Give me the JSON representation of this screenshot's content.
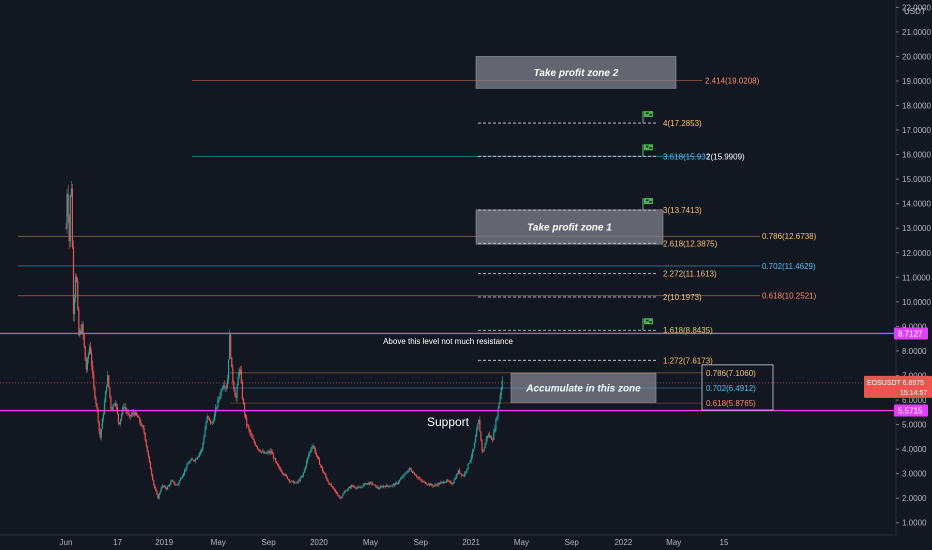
{
  "chart_data": {
    "type": "candlestick",
    "symbol": "EOSUSDT",
    "price_axis": {
      "unit": "USDT",
      "ticks": [
        "1.0000",
        "2.0000",
        "3.0000",
        "4.0000",
        "5.0000",
        "6.0000",
        "7.0000",
        "8.0000",
        "9.0000",
        "10.0000",
        "11.0000",
        "12.0000",
        "13.0000",
        "14.0000",
        "15.0000",
        "16.0000",
        "17.0000",
        "18.0000",
        "19.0000",
        "20.0000",
        "21.0000",
        "22.0000"
      ],
      "range": [
        0.5,
        22.3
      ]
    },
    "time_axis": {
      "ticks": [
        {
          "label": "Jun",
          "t": 0.0
        },
        {
          "label": "17",
          "t": 4.1
        },
        {
          "label": "2019",
          "t": 7.8
        },
        {
          "label": "May",
          "t": 12.1
        },
        {
          "label": "Sep",
          "t": 16.1
        },
        {
          "label": "2020",
          "t": 20.1
        },
        {
          "label": "May",
          "t": 24.2
        },
        {
          "label": "Sep",
          "t": 28.2
        },
        {
          "label": "2021",
          "t": 32.2
        },
        {
          "label": "May",
          "t": 36.2
        },
        {
          "label": "Sep",
          "t": 40.2
        },
        {
          "label": "2022",
          "t": 44.3
        },
        {
          "label": "May",
          "t": 48.3
        },
        {
          "label": "15",
          "t": 52.3
        }
      ]
    },
    "price_path": [
      [
        0.0,
        13.0
      ],
      [
        0.1,
        14.8
      ],
      [
        0.25,
        12.4
      ],
      [
        0.4,
        15.5
      ],
      [
        0.6,
        9.5
      ],
      [
        0.8,
        11.5
      ],
      [
        1.0,
        8.6
      ],
      [
        1.3,
        9.0
      ],
      [
        1.6,
        7.2
      ],
      [
        1.9,
        8.3
      ],
      [
        2.2,
        6.5
      ],
      [
        2.5,
        5.5
      ],
      [
        2.7,
        4.4
      ],
      [
        3.0,
        5.6
      ],
      [
        3.3,
        7.0
      ],
      [
        3.6,
        5.6
      ],
      [
        3.9,
        6.0
      ],
      [
        4.2,
        5.0
      ],
      [
        4.6,
        5.8
      ],
      [
        5.0,
        5.3
      ],
      [
        5.4,
        5.5
      ],
      [
        5.8,
        5.2
      ],
      [
        6.2,
        4.7
      ],
      [
        6.6,
        3.5
      ],
      [
        7.0,
        2.5
      ],
      [
        7.3,
        2.0
      ],
      [
        7.6,
        2.5
      ],
      [
        8.0,
        2.4
      ],
      [
        8.4,
        2.7
      ],
      [
        8.8,
        2.5
      ],
      [
        9.3,
        3.0
      ],
      [
        9.8,
        3.5
      ],
      [
        10.3,
        3.6
      ],
      [
        10.8,
        4.0
      ],
      [
        11.2,
        5.3
      ],
      [
        11.6,
        5.0
      ],
      [
        12.1,
        6.0
      ],
      [
        12.5,
        6.7
      ],
      [
        12.8,
        6.5
      ],
      [
        13.0,
        8.6
      ],
      [
        13.2,
        7.0
      ],
      [
        13.5,
        6.0
      ],
      [
        13.8,
        7.5
      ],
      [
        14.0,
        6.2
      ],
      [
        14.3,
        5.1
      ],
      [
        14.8,
        4.4
      ],
      [
        15.3,
        4.0
      ],
      [
        15.8,
        3.8
      ],
      [
        16.3,
        3.9
      ],
      [
        16.8,
        3.3
      ],
      [
        17.3,
        3.0
      ],
      [
        17.8,
        2.7
      ],
      [
        18.3,
        2.6
      ],
      [
        18.8,
        2.9
      ],
      [
        19.3,
        3.8
      ],
      [
        19.6,
        4.2
      ],
      [
        20.0,
        3.6
      ],
      [
        20.5,
        3.0
      ],
      [
        20.9,
        2.6
      ],
      [
        21.2,
        2.4
      ],
      [
        21.5,
        2.2
      ],
      [
        21.8,
        2.0
      ],
      [
        22.2,
        2.3
      ],
      [
        22.7,
        2.5
      ],
      [
        23.3,
        2.4
      ],
      [
        23.8,
        2.6
      ],
      [
        24.3,
        2.6
      ],
      [
        24.8,
        2.4
      ],
      [
        25.3,
        2.5
      ],
      [
        25.8,
        2.5
      ],
      [
        26.3,
        2.6
      ],
      [
        26.8,
        2.9
      ],
      [
        27.3,
        3.2
      ],
      [
        27.7,
        3.0
      ],
      [
        28.2,
        2.7
      ],
      [
        28.7,
        2.6
      ],
      [
        29.2,
        2.5
      ],
      [
        29.7,
        2.6
      ],
      [
        30.2,
        2.7
      ],
      [
        30.7,
        2.6
      ],
      [
        31.2,
        3.1
      ],
      [
        31.6,
        2.9
      ],
      [
        32.0,
        3.4
      ],
      [
        32.4,
        4.0
      ],
      [
        32.8,
        5.2
      ],
      [
        33.1,
        3.8
      ],
      [
        33.5,
        4.6
      ],
      [
        33.9,
        4.4
      ],
      [
        34.3,
        5.5
      ],
      [
        34.7,
        6.9
      ]
    ],
    "horizontal_lines": [
      {
        "label": "8.7127",
        "value": 8.7127,
        "color": "#e040fb",
        "style": "solid",
        "span": "full"
      },
      {
        "label": "5.5715",
        "value": 5.5715,
        "color": "#e040fb",
        "style": "solid",
        "span": "full"
      }
    ],
    "fib_extension": [
      {
        "ratio": "1.272",
        "price": "7.6173",
        "value": 7.6173
      },
      {
        "ratio": "1.618",
        "price": "8.8435",
        "value": 8.8435,
        "flag": true
      },
      {
        "ratio": "2",
        "price": "10.1973",
        "value": 10.1973
      },
      {
        "ratio": "2.272",
        "price": "11.1613",
        "value": 11.1613
      },
      {
        "ratio": "2.618",
        "price": "12.3875",
        "value": 12.3875
      },
      {
        "ratio": "3",
        "price": "13.7413",
        "value": 13.7413,
        "flag": true
      },
      {
        "ratio": "3.618",
        "price": "15.9315",
        "value": 15.9315,
        "flag": true,
        "label": "3.618(15.931"
      },
      {
        "ratio": "4",
        "price": "17.2853",
        "value": 17.2853,
        "flag": true
      }
    ],
    "fib_extension_overlap_label": "2(15.9909)",
    "fib_retracement_long": [
      {
        "label": "0.786(12.6738)",
        "value": 12.6738,
        "color": "#f7c26b"
      },
      {
        "label": "0.702(11.4629)",
        "value": 11.4629,
        "color": "#4fc3f7"
      },
      {
        "label": "0.618(10.2521)",
        "value": 10.2521,
        "color": "#ff8a65"
      }
    ],
    "fib_retracement_short": [
      {
        "label": "0.786(7.1060)",
        "value": 7.106,
        "color": "#f7c26b"
      },
      {
        "label": "0.702(6.4912)",
        "value": 6.4912,
        "color": "#4fc3f7"
      },
      {
        "label": "0.618(5.8765)",
        "value": 5.8765,
        "color": "#ff8a65"
      }
    ],
    "fib_top": {
      "label": "2.414(19.0208)",
      "value": 19.0208,
      "color": "#ff8a65"
    },
    "zones": [
      {
        "label": "Take profit zone 2",
        "top": 20.0,
        "bottom": 18.7
      },
      {
        "label": "Take profit zone 1",
        "top": 13.75,
        "bottom": 12.35
      },
      {
        "label": "Accumulate in this zone",
        "top": 7.1,
        "bottom": 5.9
      }
    ],
    "annotations": [
      {
        "text": "Above this level not much resistance",
        "value": 8.4
      },
      {
        "text": "Support",
        "value": 5.1
      }
    ],
    "current_price": {
      "label": "EOSUSDT",
      "price": "6.6975",
      "value": 6.6975,
      "countdown": "15:14:57"
    },
    "colors": {
      "background": "#131722",
      "up": "#26a69a",
      "down": "#ef5350",
      "magenta": "#e040fb",
      "fib_dash": "#d1d4dc",
      "zone": "#787b86",
      "flag": "#4caf50"
    }
  }
}
